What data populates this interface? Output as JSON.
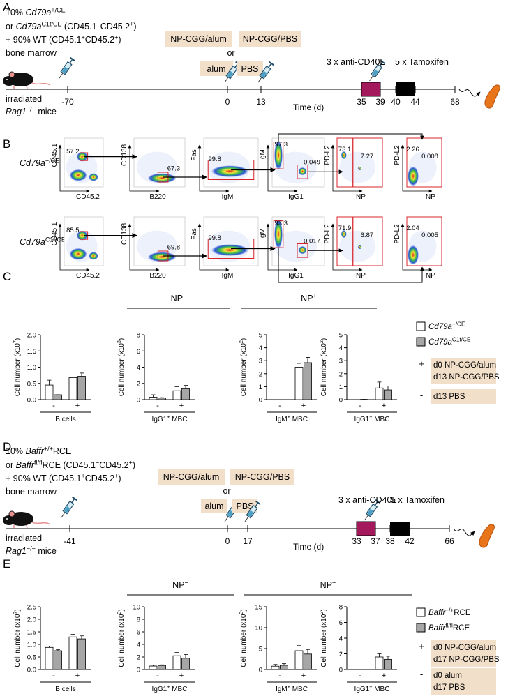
{
  "panel_a": {
    "label": "A",
    "donor": [
      [
        {
          "text": "10% "
        },
        {
          "italic": "Cd79a"
        },
        {
          "sup": "+/CE"
        }
      ],
      [
        {
          "text": "or "
        },
        {
          "italic": "Cd79a"
        },
        {
          "sup": "C1f/CE"
        },
        {
          "text": " (CD45.1"
        },
        {
          "sup": "−"
        },
        {
          "text": "CD45.2"
        },
        {
          "sup": "+"
        },
        {
          "text": ")"
        }
      ],
      [
        {
          "text": "+ 90% WT (CD45.1"
        },
        {
          "sup": "+"
        },
        {
          "text": "CD45.2"
        },
        {
          "sup": "+"
        },
        {
          "text": ")"
        }
      ],
      [
        {
          "text": "bone marrow"
        }
      ]
    ],
    "recipient": [
      [
        {
          "text": "irradiated"
        }
      ],
      [
        {
          "italic": "Rag1"
        },
        {
          "sup": "−/−"
        },
        {
          "text": " mice"
        }
      ]
    ],
    "immunization_top": [
      "NP-CGG/alum",
      "NP-CGG/PBS"
    ],
    "or": "or",
    "immunization_bottom": [
      "alum",
      "PBS"
    ],
    "treatments": [
      "3 x anti-CD40L",
      "5 x Tamoxifen"
    ],
    "timeline_days": [
      -70,
      0,
      13,
      35,
      39,
      40,
      44,
      68
    ],
    "time_label": "Time (d)"
  },
  "panel_b": {
    "label": "B",
    "rows": [
      {
        "genotype": [
          {
            "italic": "Cd79a"
          },
          {
            "sup": "+/CE"
          }
        ],
        "plots": [
          {
            "y_axis": "CD45.1",
            "x_axis": "CD45.2",
            "gates": [
              57.2
            ]
          },
          {
            "y_axis": "CD138",
            "x_axis": "B220",
            "gates": [
              67.3
            ]
          },
          {
            "y_axis": "Fas",
            "x_axis": "IgM",
            "gates": [
              99.8
            ]
          },
          {
            "y_axis": "IgM",
            "x_axis": "IgG1",
            "gates": [
              97.3,
              0.049
            ]
          },
          {
            "y_axis": "PD-L2",
            "x_axis": "NP",
            "gates": [
              73.1,
              7.27
            ]
          },
          {
            "y_axis": "PD-L2",
            "x_axis": "NP",
            "gates": [
              2.26,
              0.008
            ]
          }
        ]
      },
      {
        "genotype": [
          {
            "italic": "Cd79a"
          },
          {
            "sup": "C1f/CE"
          }
        ],
        "plots": [
          {
            "y_axis": "CD45.1",
            "x_axis": "CD45.2",
            "gates": [
              85.5
            ]
          },
          {
            "y_axis": "CD138",
            "x_axis": "B220",
            "gates": [
              69.8
            ]
          },
          {
            "y_axis": "Fas",
            "x_axis": "IgM",
            "gates": [
              99.8
            ]
          },
          {
            "y_axis": "IgM",
            "x_axis": "IgG1",
            "gates": [
              93.3,
              0.017
            ]
          },
          {
            "y_axis": "PD-L2",
            "x_axis": "NP",
            "gates": [
              71.9,
              6.87
            ]
          },
          {
            "y_axis": "PD-L2",
            "x_axis": "NP",
            "gates": [
              2.04,
              0.005
            ]
          }
        ]
      }
    ]
  },
  "panel_c": {
    "label": "C",
    "headers": [
      [
        {
          "text": "NP"
        },
        {
          "sup": "−"
        }
      ],
      [
        {
          "text": "NP"
        },
        {
          "sup": "+"
        }
      ]
    ],
    "legend": [
      {
        "label": [
          {
            "italic": "Cd79a"
          },
          {
            "sup": "+/CE"
          }
        ],
        "color": "#ffffff"
      },
      {
        "label": [
          {
            "italic": "Cd79a"
          },
          {
            "sup": "C1f/CE"
          }
        ],
        "color": "#a6a6a6"
      }
    ],
    "treatments": [
      {
        "sign": "+",
        "lines": [
          "d0 NP-CGG/alum",
          "d13 NP-CGG/PBS"
        ]
      },
      {
        "sign": "-",
        "lines": [
          "d13 PBS"
        ]
      }
    ],
    "charts": [
      {
        "y_label": [
          {
            "text": "Cell number (x10"
          },
          {
            "sup": "7"
          },
          {
            "text": ")"
          }
        ],
        "ylim": [
          0,
          2
        ],
        "yticks": [
          {
            "value": 0,
            "label": "0.0"
          },
          0.5,
          {
            "value": 1,
            "label": "1.0"
          },
          1.5,
          {
            "value": 2,
            "label": "2.0"
          }
        ],
        "groups": [
          "-",
          "+"
        ],
        "x_label": [
          {
            "text": "B cells"
          }
        ],
        "series": [
          {
            "values": [
              0.45,
              0.68
            ],
            "errors": [
              0.15,
              0.08
            ]
          },
          {
            "values": [
              0.15,
              0.72
            ],
            "errors": [
              0,
              0.1
            ]
          }
        ]
      },
      {
        "y_label": [
          {
            "text": "Cell number (x10"
          },
          {
            "sup": "3"
          },
          {
            "text": ")"
          }
        ],
        "ylim": [
          0,
          8
        ],
        "yticks": [
          0,
          2,
          4,
          6,
          8
        ],
        "groups": [
          "-",
          "+"
        ],
        "x_label": [
          {
            "text": "IgG1"
          },
          {
            "sup": "+"
          },
          {
            "text": " MBC"
          }
        ],
        "series": [
          {
            "values": [
              0.3,
              1.1
            ],
            "errors": [
              0.3,
              0.5
            ]
          },
          {
            "values": [
              0.2,
              1.35
            ],
            "errors": [
              0.05,
              0.4
            ]
          }
        ]
      },
      {
        "y_label": [
          {
            "text": "Cell number (x10"
          },
          {
            "sup": "2"
          },
          {
            "text": ")"
          }
        ],
        "ylim": [
          0,
          5
        ],
        "yticks": [
          0,
          1,
          2,
          3,
          4,
          5
        ],
        "groups": [
          "-",
          "+"
        ],
        "x_label": [
          {
            "text": "IgM"
          },
          {
            "sup": "+"
          },
          {
            "text": " MBC"
          }
        ],
        "series": [
          {
            "values": [
              0,
              2.5
            ],
            "errors": [
              0,
              0.3
            ]
          },
          {
            "values": [
              0,
              2.85
            ],
            "errors": [
              0,
              0.4
            ]
          }
        ]
      },
      {
        "y_label": [
          {
            "text": "Cell number (x10"
          },
          {
            "sup": "2"
          },
          {
            "text": ")"
          }
        ],
        "ylim": [
          0,
          5
        ],
        "yticks": [
          0,
          1,
          2,
          3,
          4,
          5
        ],
        "groups": [
          "-",
          "+"
        ],
        "x_label": [
          {
            "text": "IgG1"
          },
          {
            "sup": "+"
          },
          {
            "text": " MBC"
          }
        ],
        "series": [
          {
            "values": [
              0,
              0.9
            ],
            "errors": [
              0,
              0.45
            ]
          },
          {
            "values": [
              0.02,
              0.75
            ],
            "errors": [
              0,
              0.3
            ]
          }
        ]
      }
    ]
  },
  "panel_d": {
    "label": "D",
    "donor": [
      [
        {
          "text": "10% "
        },
        {
          "italic": "Baffr"
        },
        {
          "sup": "+/+"
        },
        {
          "text": "RCE"
        }
      ],
      [
        {
          "text": "or "
        },
        {
          "italic": "Baffr"
        },
        {
          "sup": "fl/fl"
        },
        {
          "text": "RCE (CD45.1"
        },
        {
          "sup": "−"
        },
        {
          "text": "CD45.2"
        },
        {
          "sup": "+"
        },
        {
          "text": ")"
        }
      ],
      [
        {
          "text": "+ 90% WT (CD45.1"
        },
        {
          "sup": "+"
        },
        {
          "text": "CD45.2"
        },
        {
          "sup": "+"
        },
        {
          "text": ")"
        }
      ],
      [
        {
          "text": "bone marrow"
        }
      ]
    ],
    "recipient": [
      [
        {
          "text": "irradiated"
        }
      ],
      [
        {
          "italic": "Rag1"
        },
        {
          "sup": "−/−"
        },
        {
          "text": " mice"
        }
      ]
    ],
    "immunization_top": [
      "NP-CGG/alum",
      "NP-CGG/PBS"
    ],
    "or": "or",
    "immunization_bottom": [
      "alum",
      "PBS"
    ],
    "treatments": [
      "3 x anti-CD40L",
      "5 x Tamoxifen"
    ],
    "timeline_days": [
      -41,
      0,
      17,
      33,
      37,
      38,
      42,
      66
    ],
    "time_label": "Time (d)"
  },
  "panel_e": {
    "label": "E",
    "headers": [
      [
        {
          "text": "NP"
        },
        {
          "sup": "−"
        }
      ],
      [
        {
          "text": "NP"
        },
        {
          "sup": "+"
        }
      ]
    ],
    "legend": [
      {
        "label": [
          {
            "italic": "Baffr"
          },
          {
            "sup": "+/+"
          },
          {
            "text": "RCE"
          }
        ],
        "color": "#ffffff"
      },
      {
        "label": [
          {
            "italic": "Baffr"
          },
          {
            "sup": "fl/fl"
          },
          {
            "text": "RCE"
          }
        ],
        "color": "#a6a6a6"
      }
    ],
    "treatments": [
      {
        "sign": "+",
        "lines": [
          "d0 NP-CGG/alum",
          "d17 NP-CGG/PBS"
        ]
      },
      {
        "sign": "-",
        "lines": [
          "d0 alum",
          "d17 PBS"
        ]
      }
    ],
    "charts": [
      {
        "y_label": [
          {
            "text": "Cell number (x10"
          },
          {
            "sup": "7"
          },
          {
            "text": ")"
          }
        ],
        "ylim": [
          0,
          2.5
        ],
        "yticks": [
          {
            "value": 0,
            "label": "0.0"
          },
          0.5,
          {
            "value": 1,
            "label": "1.0"
          },
          1.5,
          {
            "value": 2,
            "label": "2.0"
          },
          2.5
        ],
        "groups": [
          "-",
          "+"
        ],
        "x_label": [
          {
            "text": "B cells"
          }
        ],
        "series": [
          {
            "values": [
              0.88,
              1.3
            ],
            "errors": [
              0.05,
              0.1
            ]
          },
          {
            "values": [
              0.75,
              1.22
            ],
            "errors": [
              0.05,
              0.12
            ]
          }
        ]
      },
      {
        "y_label": [
          {
            "text": "Cell number (x10"
          },
          {
            "sup": "3"
          },
          {
            "text": ")"
          }
        ],
        "ylim": [
          0,
          10
        ],
        "yticks": [
          0,
          2,
          4,
          6,
          8,
          10
        ],
        "groups": [
          "-",
          "+"
        ],
        "x_label": [
          {
            "text": "IgG1"
          },
          {
            "sup": "+"
          },
          {
            "text": " MBC"
          }
        ],
        "series": [
          {
            "values": [
              0.55,
              2.2
            ],
            "errors": [
              0.15,
              0.5
            ]
          },
          {
            "values": [
              0.65,
              1.8
            ],
            "errors": [
              0.1,
              0.6
            ]
          }
        ]
      },
      {
        "y_label": [
          {
            "text": "Cell number (x10"
          },
          {
            "sup": "3"
          },
          {
            "text": ")"
          }
        ],
        "ylim": [
          0,
          15
        ],
        "yticks": [
          0,
          5,
          10,
          15
        ],
        "groups": [
          "-",
          "+"
        ],
        "x_label": [
          {
            "text": "IgM"
          },
          {
            "sup": "+"
          },
          {
            "text": " MBC"
          }
        ],
        "series": [
          {
            "values": [
              0.8,
              4.5
            ],
            "errors": [
              0.4,
              1.2
            ]
          },
          {
            "values": [
              1,
              3.7
            ],
            "errors": [
              0.4,
              1.1
            ]
          }
        ]
      },
      {
        "y_label": [
          {
            "text": "Cell number (x10"
          },
          {
            "sup": "2"
          },
          {
            "text": ")"
          }
        ],
        "ylim": [
          0,
          8
        ],
        "yticks": [
          0,
          2,
          4,
          6,
          8
        ],
        "groups": [
          "-",
          "+"
        ],
        "x_label": [
          {
            "text": "IgG1"
          },
          {
            "sup": "+"
          },
          {
            "text": " MBC"
          }
        ],
        "series": [
          {
            "values": [
              0,
              1.6
            ],
            "errors": [
              0,
              0.4
            ]
          },
          {
            "values": [
              0,
              1.3
            ],
            "errors": [
              0,
              0.4
            ]
          }
        ]
      }
    ]
  }
}
